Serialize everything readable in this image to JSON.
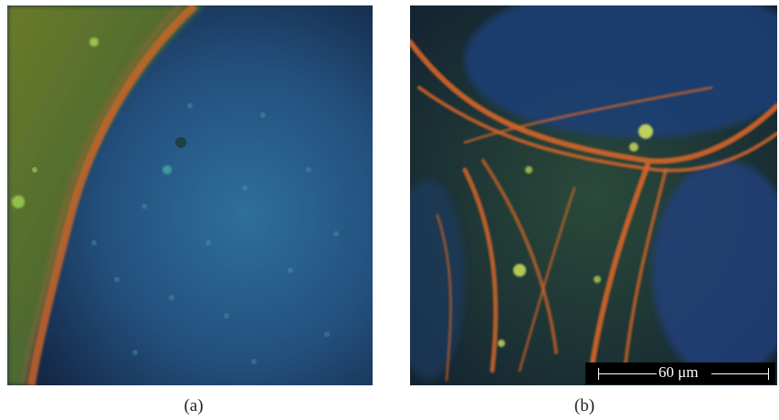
{
  "figure": {
    "panels": [
      {
        "caption": "(a)"
      },
      {
        "caption": "(b)"
      }
    ],
    "scale_bar": {
      "label": "60 μm"
    }
  }
}
